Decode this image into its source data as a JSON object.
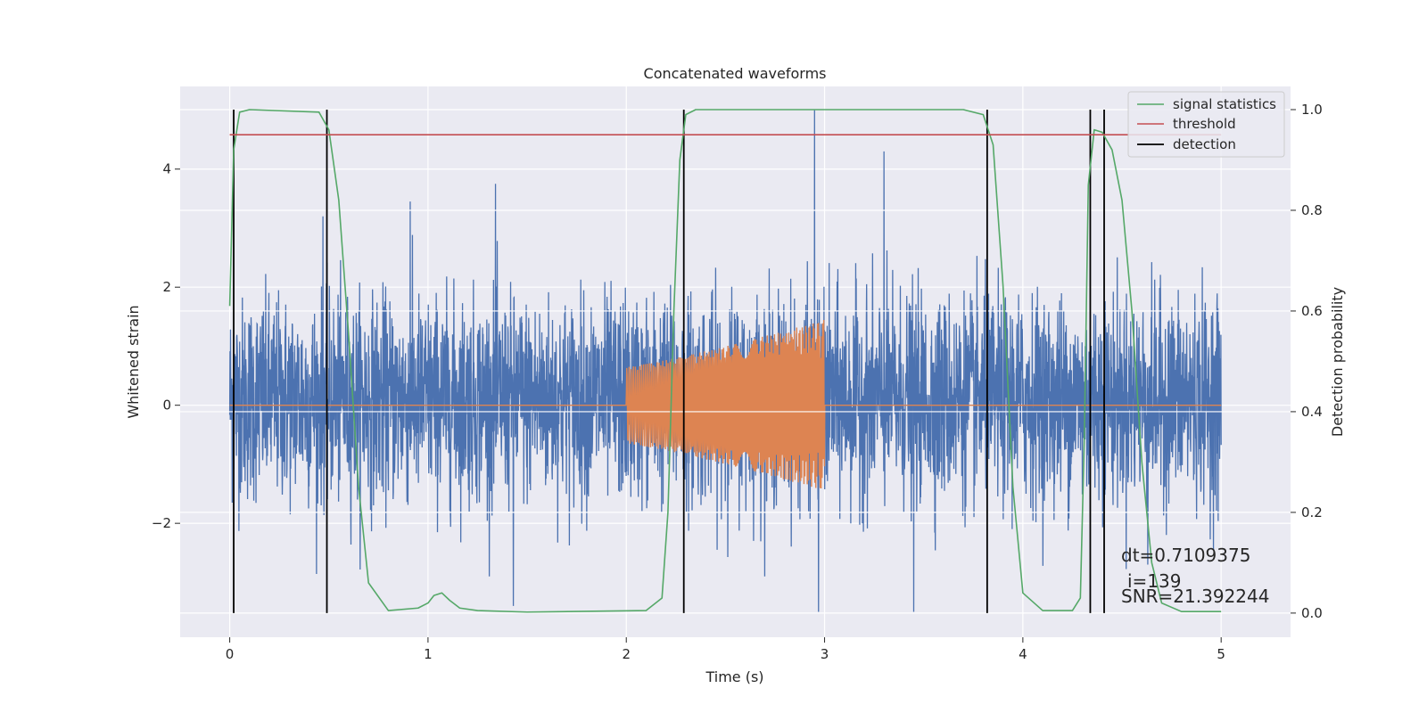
{
  "chart_data": {
    "type": "line",
    "title": "Concatenated waveforms",
    "xlabel": "Time (s)",
    "ylabel": "Whitened strain",
    "ylabel_right": "Detection probability",
    "xlim": [
      -0.25,
      5.35
    ],
    "ylim": [
      -3.93,
      5.4
    ],
    "ylim_right": [
      -0.048,
      1.046
    ],
    "xticks": [
      0,
      1,
      2,
      3,
      4,
      5
    ],
    "yticks": [
      -2,
      0,
      2,
      4
    ],
    "yticks_right": [
      0.0,
      0.2,
      0.4,
      0.6,
      0.8,
      1.0
    ],
    "grid": true,
    "legend_position": "top-right",
    "colors": {
      "noise": "#4c72b0",
      "waveform": "#dd8452",
      "signal_statistics": "#55a868",
      "threshold": "#c44e52",
      "detection": "#000000",
      "background": "#eaeaf2",
      "grid": "#ffffff"
    },
    "noise_series": {
      "x_start": 0.0,
      "x_end": 5.0,
      "typical_band": [
        -1.35,
        1.55
      ],
      "max": 5.0,
      "min": -3.5,
      "peaks": [
        {
          "x": 0.47,
          "y": 3.2
        },
        {
          "x": 0.91,
          "y": 3.45
        },
        {
          "x": 1.34,
          "y": 3.75
        },
        {
          "x": 1.43,
          "y": -3.4
        },
        {
          "x": 2.95,
          "y": 5.0
        },
        {
          "x": 2.97,
          "y": -3.5
        },
        {
          "x": 3.3,
          "y": 4.3
        },
        {
          "x": 3.45,
          "y": -3.5
        },
        {
          "x": 4.63,
          "y": -2.7
        }
      ]
    },
    "waveform_series": {
      "baseline": 0.0,
      "chirp_start": 2.0,
      "chirp_end": 3.0,
      "start_amplitude": 0.65,
      "end_amplitude": 1.45
    },
    "series": [
      {
        "name": "signal statistics",
        "axis": "right",
        "x": [
          0.0,
          0.02,
          0.05,
          0.1,
          0.45,
          0.5,
          0.55,
          0.6,
          0.65,
          0.7,
          0.8,
          0.95,
          1.0,
          1.03,
          1.07,
          1.11,
          1.16,
          1.25,
          1.5,
          2.1,
          2.18,
          2.21,
          2.24,
          2.27,
          2.3,
          2.35,
          2.5,
          3.7,
          3.8,
          3.85,
          3.9,
          3.95,
          4.0,
          4.1,
          4.25,
          4.29,
          4.31,
          4.33,
          4.36,
          4.4,
          4.45,
          4.5,
          4.55,
          4.6,
          4.65,
          4.7,
          4.8,
          5.0
        ],
        "y": [
          0.61,
          0.92,
          0.995,
          1.0,
          0.995,
          0.96,
          0.82,
          0.55,
          0.25,
          0.06,
          0.005,
          0.01,
          0.02,
          0.035,
          0.04,
          0.025,
          0.01,
          0.005,
          0.002,
          0.005,
          0.03,
          0.2,
          0.6,
          0.9,
          0.99,
          1.0,
          1.0,
          1.0,
          0.99,
          0.93,
          0.65,
          0.25,
          0.04,
          0.005,
          0.005,
          0.03,
          0.35,
          0.85,
          0.96,
          0.955,
          0.92,
          0.82,
          0.6,
          0.3,
          0.1,
          0.02,
          0.003,
          0.003
        ]
      },
      {
        "name": "threshold",
        "axis": "right",
        "x": [
          0.0,
          5.0
        ],
        "y": [
          0.95,
          0.95
        ]
      }
    ],
    "detections": {
      "name": "detection",
      "x": [
        0.02,
        0.49,
        2.29,
        3.82,
        4.34,
        4.41
      ],
      "y_range": [
        0.0,
        1.0
      ]
    },
    "legend": [
      "signal statistics",
      "threshold",
      "detection"
    ],
    "annotations": {
      "dt": "dt=0.7109375",
      "i": "i=139",
      "snr": "SNR=21.392244"
    }
  }
}
